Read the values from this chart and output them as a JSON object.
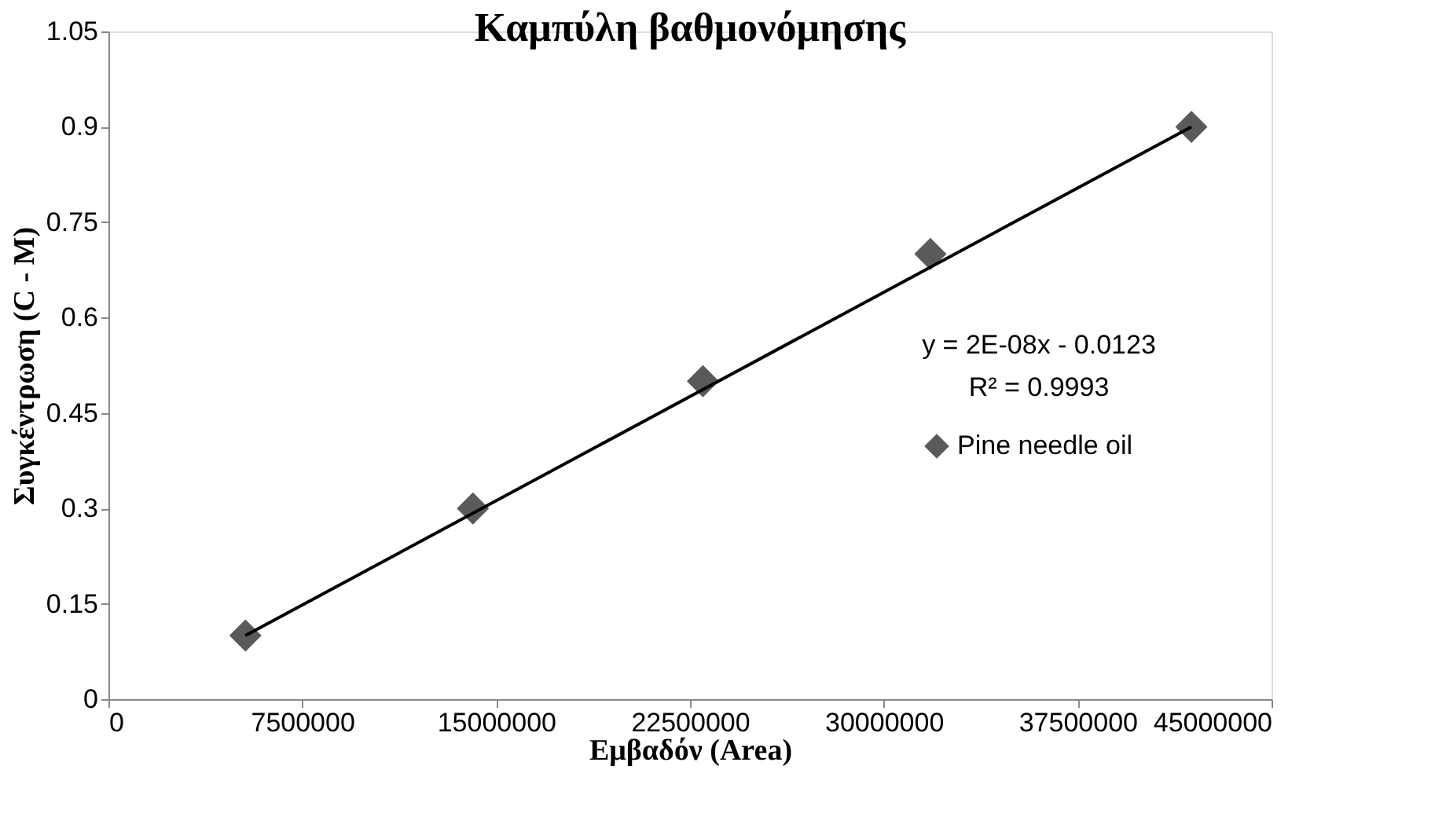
{
  "chart_data": {
    "type": "scatter",
    "title": "Καμπύλη βαθμονόμησης",
    "xlabel": "Εμβαδόν (Area)",
    "ylabel": "Συγκέντρωση (C - M)",
    "xlim": [
      0,
      45000000
    ],
    "xticks": [
      0,
      7500000,
      15000000,
      22500000,
      30000000,
      37500000,
      45000000
    ],
    "ylim": [
      0,
      1.05
    ],
    "yticks": [
      0,
      0.15,
      0.3,
      0.45,
      0.6,
      0.75,
      0.9,
      1.05
    ],
    "series": [
      {
        "name": "Pine needle oil",
        "type": "scatter",
        "color": "#5a5a5a",
        "x": [
          5300000,
          14100000,
          23000000,
          31800000,
          41900000
        ],
        "values": [
          0.1,
          0.3,
          0.5,
          0.7,
          0.9
        ],
        "marker": "diamond"
      },
      {
        "type": "line",
        "color": "#000000",
        "x": [
          5300000,
          41900000
        ],
        "values": [
          0.1,
          0.9
        ]
      }
    ],
    "annotations": [
      "y = 2E-08x - 0.0123",
      "R² = 0.9993"
    ],
    "line_style": "solid",
    "grid": false,
    "legend": "right"
  }
}
